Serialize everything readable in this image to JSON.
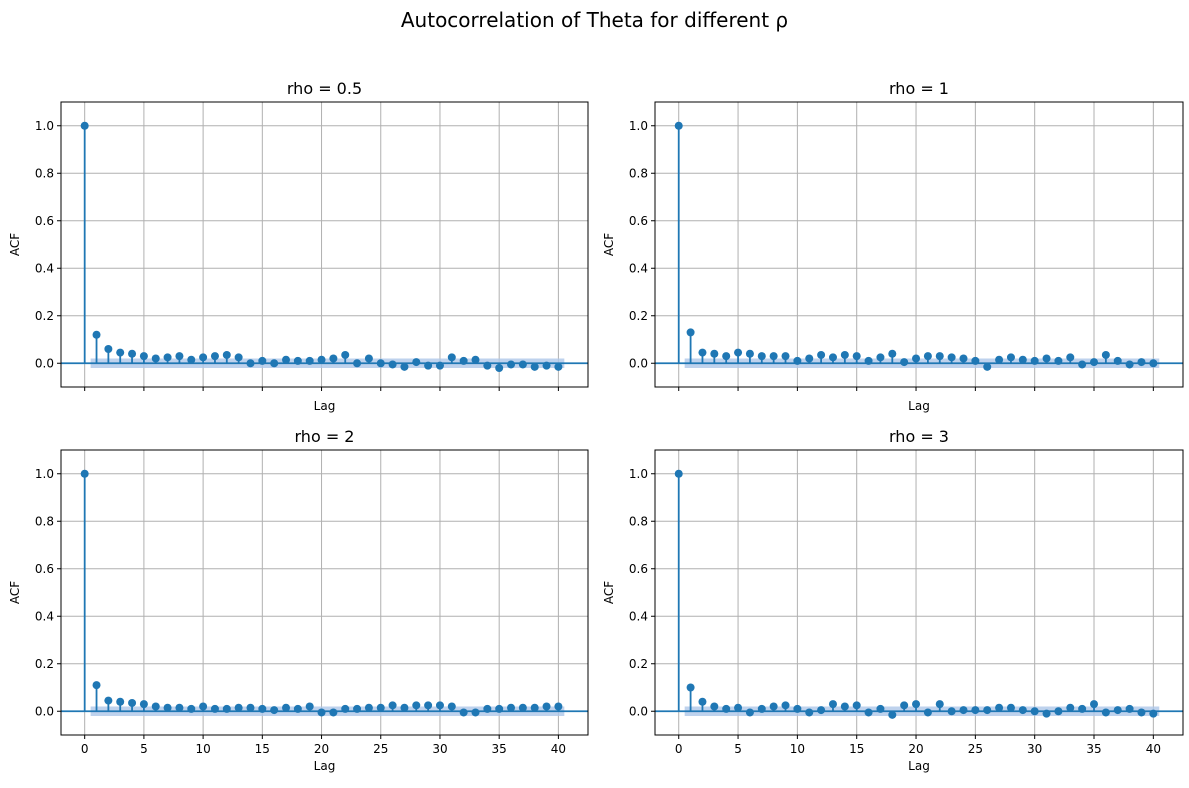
{
  "figure": {
    "suptitle": "Autocorrelation of Theta for different ρ",
    "colors": {
      "stem": "#1f77b4",
      "band": "#aec7e8",
      "grid": "#b0b0b0",
      "axis": "#000000"
    }
  },
  "chart_data": [
    {
      "type": "scatter",
      "subtype": "stem",
      "title": "rho = 0.5",
      "xlabel": "Lag",
      "ylabel": "ACF",
      "xlim": [
        -2,
        42.5
      ],
      "ylim": [
        -0.1,
        1.1
      ],
      "xticks": [
        0,
        5,
        10,
        15,
        20,
        25,
        30,
        35,
        40
      ],
      "yticks": [
        0.0,
        0.2,
        0.4,
        0.6,
        0.8,
        1.0
      ],
      "show_xtick_labels": false,
      "grid": true,
      "confidence_band": 0.02,
      "x": [
        0,
        1,
        2,
        3,
        4,
        5,
        6,
        7,
        8,
        9,
        10,
        11,
        12,
        13,
        14,
        15,
        16,
        17,
        18,
        19,
        20,
        21,
        22,
        23,
        24,
        25,
        26,
        27,
        28,
        29,
        30,
        31,
        32,
        33,
        34,
        35,
        36,
        37,
        38,
        39,
        40
      ],
      "values": [
        1.0,
        0.12,
        0.06,
        0.045,
        0.04,
        0.03,
        0.02,
        0.025,
        0.03,
        0.015,
        0.025,
        0.03,
        0.035,
        0.025,
        0.0,
        0.01,
        0.0,
        0.015,
        0.01,
        0.01,
        0.015,
        0.02,
        0.035,
        0.0,
        0.02,
        0.0,
        -0.005,
        -0.015,
        0.005,
        -0.01,
        -0.01,
        0.025,
        0.01,
        0.015,
        -0.01,
        -0.02,
        -0.005,
        -0.005,
        -0.015,
        -0.01,
        -0.015
      ]
    },
    {
      "type": "scatter",
      "subtype": "stem",
      "title": "rho = 1",
      "xlabel": "Lag",
      "ylabel": "ACF",
      "xlim": [
        -2,
        42.5
      ],
      "ylim": [
        -0.1,
        1.1
      ],
      "xticks": [
        0,
        5,
        10,
        15,
        20,
        25,
        30,
        35,
        40
      ],
      "yticks": [
        0.0,
        0.2,
        0.4,
        0.6,
        0.8,
        1.0
      ],
      "show_xtick_labels": false,
      "grid": true,
      "confidence_band": 0.02,
      "x": [
        0,
        1,
        2,
        3,
        4,
        5,
        6,
        7,
        8,
        9,
        10,
        11,
        12,
        13,
        14,
        15,
        16,
        17,
        18,
        19,
        20,
        21,
        22,
        23,
        24,
        25,
        26,
        27,
        28,
        29,
        30,
        31,
        32,
        33,
        34,
        35,
        36,
        37,
        38,
        39,
        40
      ],
      "values": [
        1.0,
        0.13,
        0.045,
        0.04,
        0.03,
        0.045,
        0.04,
        0.03,
        0.03,
        0.03,
        0.01,
        0.02,
        0.035,
        0.025,
        0.035,
        0.03,
        0.01,
        0.025,
        0.04,
        0.005,
        0.02,
        0.03,
        0.03,
        0.025,
        0.02,
        0.01,
        -0.015,
        0.015,
        0.025,
        0.015,
        0.01,
        0.02,
        0.01,
        0.025,
        -0.005,
        0.005,
        0.035,
        0.01,
        -0.005,
        0.005,
        0.0
      ]
    },
    {
      "type": "scatter",
      "subtype": "stem",
      "title": "rho = 2",
      "xlabel": "Lag",
      "ylabel": "ACF",
      "xlim": [
        -2,
        42.5
      ],
      "ylim": [
        -0.1,
        1.1
      ],
      "xticks": [
        0,
        5,
        10,
        15,
        20,
        25,
        30,
        35,
        40
      ],
      "yticks": [
        0.0,
        0.2,
        0.4,
        0.6,
        0.8,
        1.0
      ],
      "show_xtick_labels": true,
      "grid": true,
      "confidence_band": 0.02,
      "x": [
        0,
        1,
        2,
        3,
        4,
        5,
        6,
        7,
        8,
        9,
        10,
        11,
        12,
        13,
        14,
        15,
        16,
        17,
        18,
        19,
        20,
        21,
        22,
        23,
        24,
        25,
        26,
        27,
        28,
        29,
        30,
        31,
        32,
        33,
        34,
        35,
        36,
        37,
        38,
        39,
        40
      ],
      "values": [
        1.0,
        0.11,
        0.045,
        0.04,
        0.035,
        0.03,
        0.02,
        0.015,
        0.015,
        0.01,
        0.02,
        0.01,
        0.01,
        0.015,
        0.015,
        0.01,
        0.005,
        0.015,
        0.01,
        0.02,
        -0.005,
        -0.005,
        0.01,
        0.01,
        0.015,
        0.015,
        0.025,
        0.015,
        0.025,
        0.025,
        0.025,
        0.02,
        -0.005,
        -0.005,
        0.01,
        0.01,
        0.015,
        0.015,
        0.015,
        0.02,
        0.02
      ]
    },
    {
      "type": "scatter",
      "subtype": "stem",
      "title": "rho = 3",
      "xlabel": "Lag",
      "ylabel": "ACF",
      "xlim": [
        -2,
        42.5
      ],
      "ylim": [
        -0.1,
        1.1
      ],
      "xticks": [
        0,
        5,
        10,
        15,
        20,
        25,
        30,
        35,
        40
      ],
      "yticks": [
        0.0,
        0.2,
        0.4,
        0.6,
        0.8,
        1.0
      ],
      "show_xtick_labels": true,
      "grid": true,
      "confidence_band": 0.02,
      "x": [
        0,
        1,
        2,
        3,
        4,
        5,
        6,
        7,
        8,
        9,
        10,
        11,
        12,
        13,
        14,
        15,
        16,
        17,
        18,
        19,
        20,
        21,
        22,
        23,
        24,
        25,
        26,
        27,
        28,
        29,
        30,
        31,
        32,
        33,
        34,
        35,
        36,
        37,
        38,
        39,
        40
      ],
      "values": [
        1.0,
        0.1,
        0.04,
        0.02,
        0.01,
        0.015,
        -0.005,
        0.01,
        0.02,
        0.025,
        0.01,
        -0.005,
        0.005,
        0.03,
        0.02,
        0.025,
        -0.005,
        0.01,
        -0.015,
        0.025,
        0.03,
        -0.005,
        0.03,
        0.0,
        0.005,
        0.005,
        0.005,
        0.015,
        0.015,
        0.005,
        0.0,
        -0.01,
        0.0,
        0.015,
        0.01,
        0.03,
        -0.005,
        0.005,
        0.01,
        -0.005,
        -0.01
      ]
    }
  ]
}
